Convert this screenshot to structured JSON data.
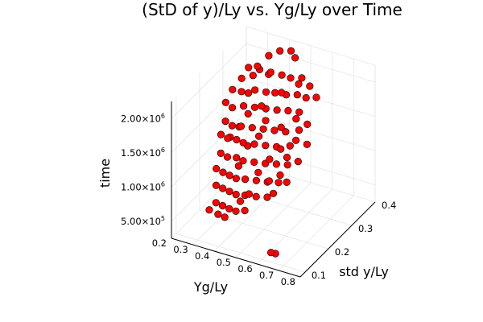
{
  "chart_data": {
    "type": "scatter",
    "projection": "3d",
    "title": "(StD of y)/Ly vs. Yg/Ly over Time",
    "axes": {
      "x": {
        "label": "Yg/Ly",
        "range": [
          0.2,
          0.8
        ],
        "ticks": [
          "0.2",
          "0.3",
          "0.4",
          "0.5",
          "0.6",
          "0.7",
          "0.8"
        ]
      },
      "y": {
        "label": "std y/Ly",
        "range": [
          0.08,
          0.4
        ],
        "ticks": [
          "0.1",
          "0.2",
          "0.3",
          "0.4"
        ]
      },
      "z": {
        "label": "time",
        "range": [
          250000,
          2250000
        ],
        "ticks": [
          {
            "mantissa": "5.00×10",
            "exp": "5"
          },
          {
            "mantissa": "1.00×10",
            "exp": "6"
          },
          {
            "mantissa": "1.50×10",
            "exp": "6"
          },
          {
            "mantissa": "2.00×10",
            "exp": "6"
          }
        ]
      }
    },
    "grid": true,
    "legend": "none",
    "marker_color": "#ff0000",
    "marker_edge": "#000000",
    "series": [
      {
        "points": [
          [
            0.33,
            0.29,
            2150000
          ],
          [
            0.35,
            0.31,
            2120000
          ],
          [
            0.37,
            0.34,
            2190000
          ],
          [
            0.4,
            0.36,
            2220000
          ],
          [
            0.43,
            0.38,
            2180000
          ],
          [
            0.46,
            0.37,
            2140000
          ],
          [
            0.32,
            0.27,
            2050000
          ],
          [
            0.34,
            0.3,
            2010000
          ],
          [
            0.38,
            0.33,
            1960000
          ],
          [
            0.42,
            0.35,
            1920000
          ],
          [
            0.45,
            0.36,
            1870000
          ],
          [
            0.48,
            0.38,
            1830000
          ],
          [
            0.31,
            0.24,
            1980000
          ],
          [
            0.33,
            0.26,
            1900000
          ],
          [
            0.36,
            0.29,
            1850000
          ],
          [
            0.39,
            0.31,
            1780000
          ],
          [
            0.41,
            0.33,
            1720000
          ],
          [
            0.44,
            0.35,
            1650000
          ],
          [
            0.47,
            0.37,
            1610000
          ],
          [
            0.5,
            0.38,
            1560000
          ],
          [
            0.3,
            0.22,
            1850000
          ],
          [
            0.32,
            0.23,
            1760000
          ],
          [
            0.34,
            0.26,
            1700000
          ],
          [
            0.37,
            0.28,
            1640000
          ],
          [
            0.4,
            0.3,
            1580000
          ],
          [
            0.43,
            0.32,
            1520000
          ],
          [
            0.46,
            0.34,
            1470000
          ],
          [
            0.49,
            0.36,
            1410000
          ],
          [
            0.31,
            0.21,
            1620000
          ],
          [
            0.33,
            0.22,
            1540000
          ],
          [
            0.35,
            0.24,
            1480000
          ],
          [
            0.38,
            0.26,
            1420000
          ],
          [
            0.41,
            0.28,
            1360000
          ],
          [
            0.44,
            0.3,
            1300000
          ],
          [
            0.47,
            0.32,
            1240000
          ],
          [
            0.5,
            0.35,
            1190000
          ],
          [
            0.3,
            0.2,
            1450000
          ],
          [
            0.32,
            0.21,
            1380000
          ],
          [
            0.34,
            0.23,
            1310000
          ],
          [
            0.36,
            0.24,
            1250000
          ],
          [
            0.39,
            0.26,
            1190000
          ],
          [
            0.42,
            0.28,
            1130000
          ],
          [
            0.45,
            0.3,
            1070000
          ],
          [
            0.48,
            0.33,
            1010000
          ],
          [
            0.31,
            0.19,
            1220000
          ],
          [
            0.33,
            0.2,
            1150000
          ],
          [
            0.35,
            0.22,
            1090000
          ],
          [
            0.37,
            0.23,
            1030000
          ],
          [
            0.4,
            0.25,
            970000
          ],
          [
            0.43,
            0.27,
            910000
          ],
          [
            0.46,
            0.29,
            860000
          ],
          [
            0.49,
            0.31,
            810000
          ],
          [
            0.3,
            0.18,
            1020000
          ],
          [
            0.32,
            0.19,
            950000
          ],
          [
            0.34,
            0.2,
            890000
          ],
          [
            0.36,
            0.21,
            830000
          ],
          [
            0.38,
            0.23,
            770000
          ],
          [
            0.41,
            0.25,
            710000
          ],
          [
            0.44,
            0.27,
            650000
          ],
          [
            0.47,
            0.29,
            600000
          ],
          [
            0.31,
            0.17,
            820000
          ],
          [
            0.33,
            0.18,
            760000
          ],
          [
            0.35,
            0.19,
            700000
          ],
          [
            0.37,
            0.2,
            640000
          ],
          [
            0.39,
            0.22,
            580000
          ],
          [
            0.42,
            0.24,
            520000
          ],
          [
            0.45,
            0.26,
            470000
          ],
          [
            0.32,
            0.16,
            610000
          ],
          [
            0.34,
            0.17,
            550000
          ],
          [
            0.36,
            0.18,
            490000
          ],
          [
            0.38,
            0.19,
            440000
          ],
          [
            0.4,
            0.21,
            400000
          ],
          [
            0.3,
            0.15,
            520000
          ],
          [
            0.33,
            0.16,
            450000
          ],
          [
            0.35,
            0.17,
            390000
          ],
          [
            0.62,
            0.12,
            300000
          ],
          [
            0.63,
            0.13,
            260000
          ],
          [
            0.52,
            0.33,
            1950000
          ],
          [
            0.55,
            0.35,
            1880000
          ],
          [
            0.57,
            0.36,
            1700000
          ],
          [
            0.53,
            0.31,
            1520000
          ],
          [
            0.56,
            0.33,
            1400000
          ],
          [
            0.54,
            0.3,
            1250000
          ],
          [
            0.57,
            0.32,
            1150000
          ],
          [
            0.52,
            0.28,
            1050000
          ],
          [
            0.55,
            0.3,
            950000
          ],
          [
            0.51,
            0.26,
            850000
          ],
          [
            0.53,
            0.27,
            730000
          ],
          [
            0.5,
            0.24,
            640000
          ],
          [
            0.36,
            0.31,
            2080000
          ],
          [
            0.39,
            0.33,
            2000000
          ],
          [
            0.41,
            0.29,
            1450000
          ],
          [
            0.37,
            0.25,
            1180000
          ],
          [
            0.35,
            0.27,
            1560000
          ],
          [
            0.43,
            0.24,
            880000
          ],
          [
            0.39,
            0.2,
            560000
          ],
          [
            0.34,
            0.28,
            1820000
          ],
          [
            0.44,
            0.33,
            1750000
          ],
          [
            0.46,
            0.31,
            1330000
          ],
          [
            0.48,
            0.29,
            1100000
          ],
          [
            0.42,
            0.21,
            660000
          ],
          [
            0.36,
            0.22,
            980000
          ],
          [
            0.4,
            0.27,
            1280000
          ],
          [
            0.38,
            0.3,
            1600000
          ],
          [
            0.33,
            0.25,
            1420000
          ],
          [
            0.31,
            0.23,
            1320000
          ],
          [
            0.45,
            0.27,
            990000
          ],
          [
            0.47,
            0.25,
            760000
          ]
        ]
      }
    ]
  }
}
